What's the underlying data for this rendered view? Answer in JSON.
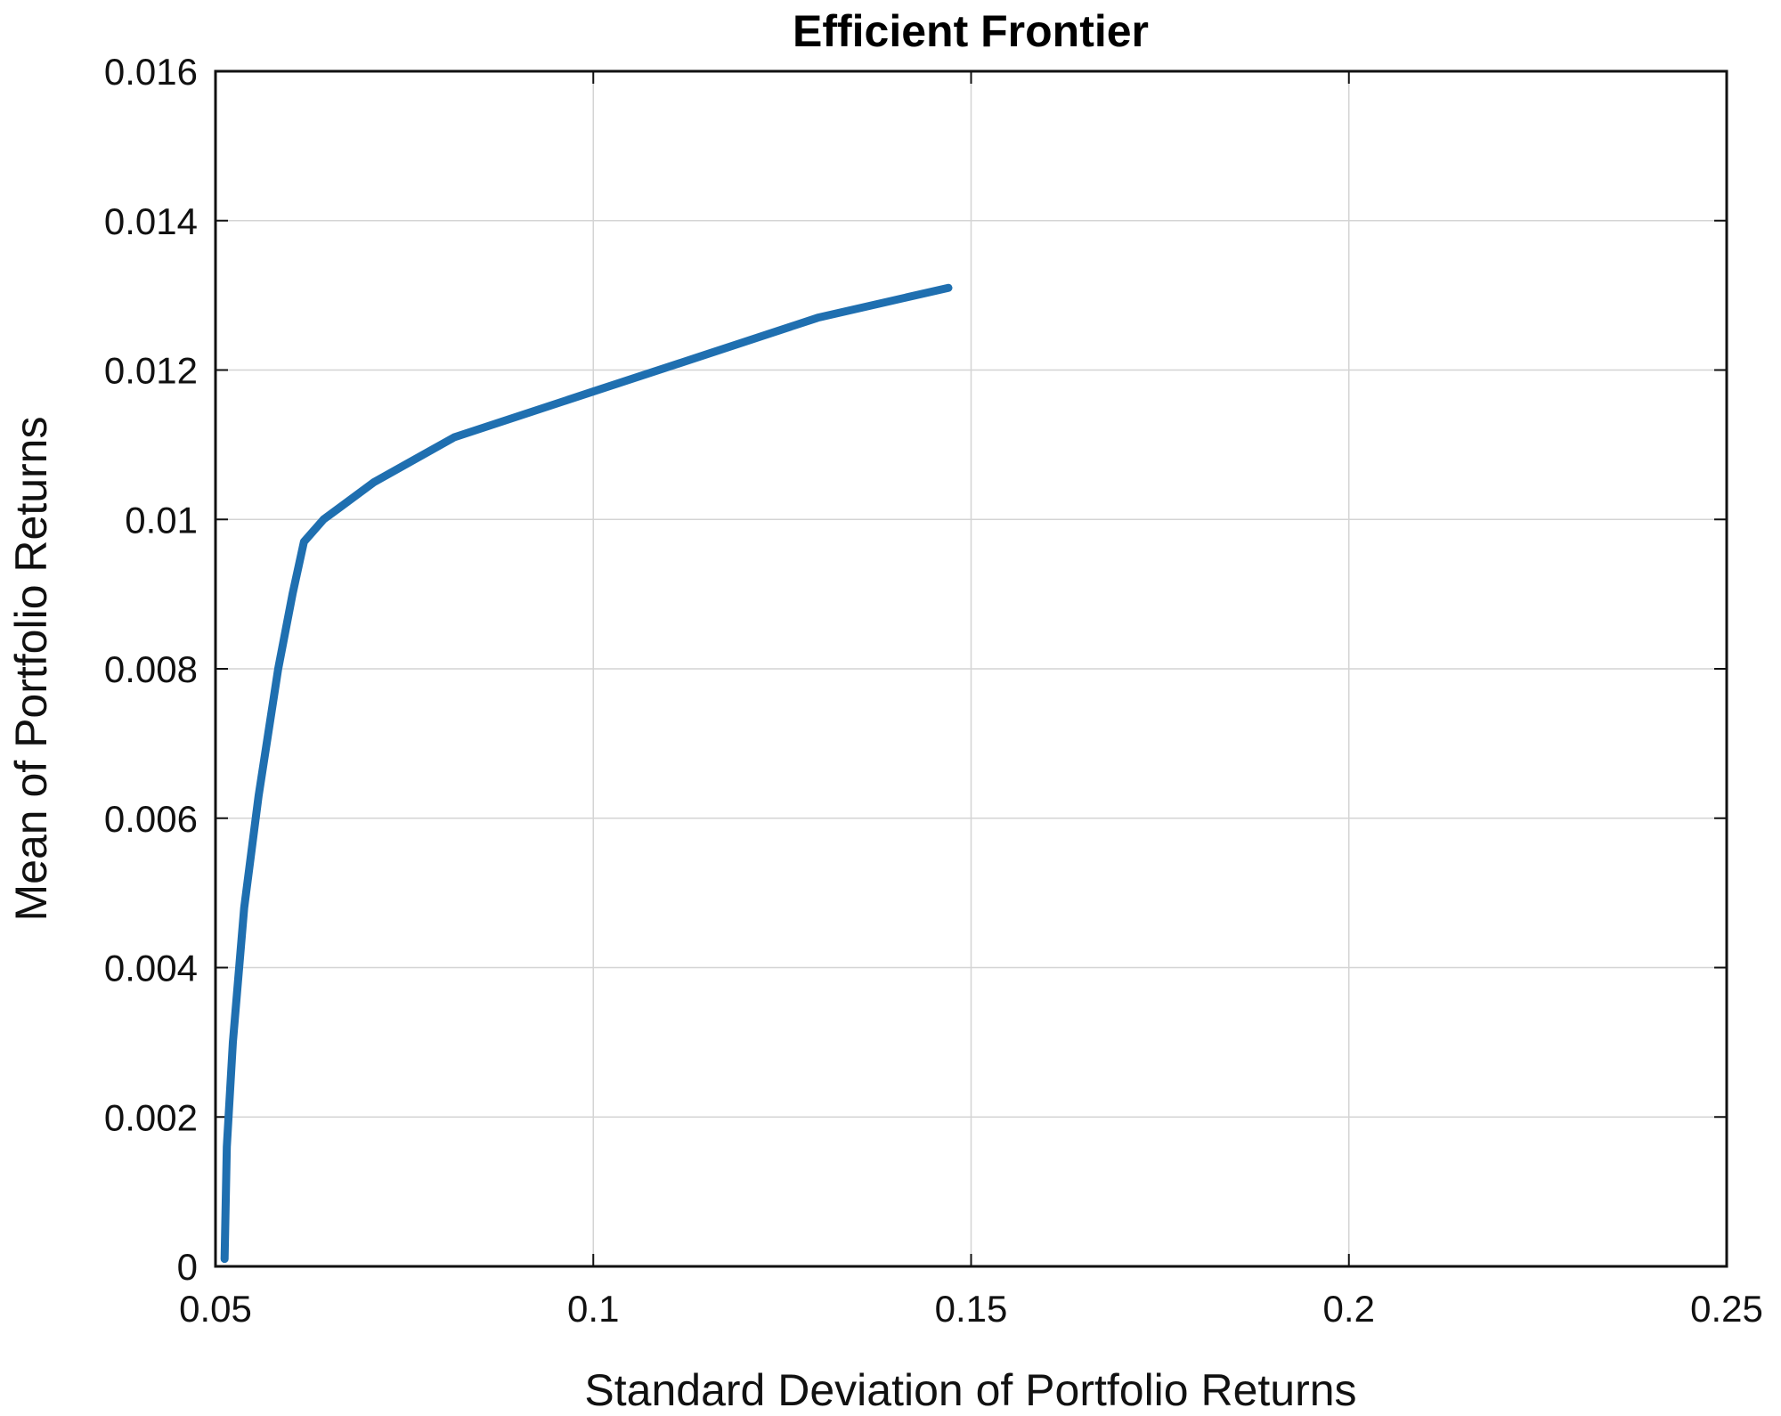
{
  "chart_data": {
    "type": "line",
    "title": "Efficient Frontier",
    "xlabel": "Standard Deviation of Portfolio Returns",
    "ylabel": "Mean of Portfolio Returns",
    "xlim": [
      0.05,
      0.25
    ],
    "ylim": [
      0,
      0.016
    ],
    "xticks": [
      "0.05",
      "0.1",
      "0.15",
      "0.2",
      "0.25"
    ],
    "yticks": [
      "0",
      "0.002",
      "0.004",
      "0.006",
      "0.008",
      "0.01",
      "0.012",
      "0.014",
      "0.016"
    ],
    "grid": true,
    "series": [
      {
        "name": "Efficient Frontier",
        "color": "#1f6fb0",
        "x": [
          0.0512,
          0.0515,
          0.0523,
          0.0538,
          0.0557,
          0.0583,
          0.0602,
          0.0617,
          0.0643,
          0.071,
          0.0816,
          0.0996,
          0.1147,
          0.1297,
          0.147
        ],
        "y": [
          0.0001,
          0.0016,
          0.003,
          0.0048,
          0.0063,
          0.008,
          0.009,
          0.0097,
          0.01,
          0.0105,
          0.0111,
          0.0117,
          0.0122,
          0.0127,
          0.0131
        ]
      }
    ]
  }
}
